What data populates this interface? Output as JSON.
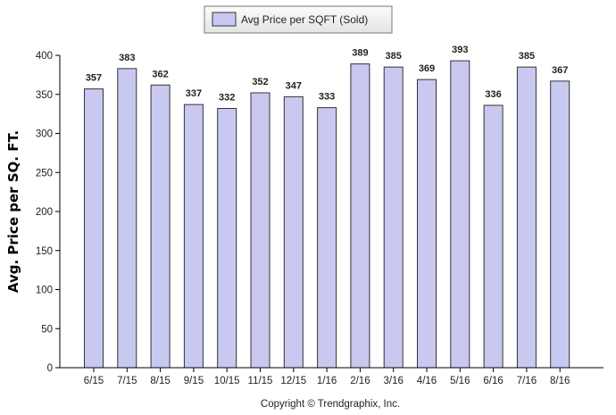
{
  "chart_data": {
    "type": "bar",
    "categories": [
      "6/15",
      "7/15",
      "8/15",
      "9/15",
      "10/15",
      "11/15",
      "12/15",
      "1/16",
      "2/16",
      "3/16",
      "4/16",
      "5/16",
      "6/16",
      "7/16",
      "8/16"
    ],
    "series": [
      {
        "name": "Avg Price per SQFT (Sold)",
        "values": [
          357,
          383,
          362,
          337,
          332,
          352,
          347,
          333,
          389,
          385,
          369,
          393,
          336,
          385,
          367
        ],
        "color": "#c8c8f0"
      }
    ],
    "ylabel": "Avg. Price per SQ. FT.",
    "ylim": [
      0,
      400
    ],
    "yticks": [
      0,
      50,
      100,
      150,
      200,
      250,
      300,
      350,
      400
    ],
    "data_labels": true,
    "grid": false,
    "legend_position": "top-center",
    "bar_border_color": "#333333"
  },
  "footer": {
    "copyright": "Copyright © Trendgraphix, Inc."
  }
}
